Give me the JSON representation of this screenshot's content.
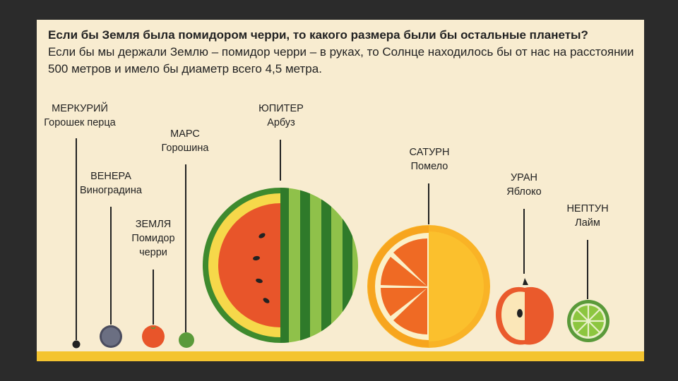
{
  "title": "Если бы Земля была помидором черри, то какого размера были бы остальные планеты?",
  "subtitle": "Если бы мы держали Землю – помидор черри – в руках, то Солнце находилось бы от нас на расстоянии 500 метров и имело бы диаметр всего 4,5 метра.",
  "planets": [
    {
      "name": "МЕРКУРИЙ",
      "fruit": "Горошек перца"
    },
    {
      "name": "ВЕНЕРА",
      "fruit": "Виноградина"
    },
    {
      "name": "ЗЕМЛЯ",
      "fruit": "Помидор черри"
    },
    {
      "name": "МАРС",
      "fruit": "Горошина"
    },
    {
      "name": "ЮПИТЕР",
      "fruit": "Арбуз"
    },
    {
      "name": "САТУРН",
      "fruit": "Помело"
    },
    {
      "name": "УРАН",
      "fruit": "Яблоко"
    },
    {
      "name": "НЕПТУН",
      "fruit": "Лайм"
    }
  ],
  "colors": {
    "background": "#f8ecd0",
    "ground": "#f4c430",
    "pepper": "#222222",
    "grape": "#6b6f82",
    "tomato": "#e8552a",
    "pea": "#5a9a3a",
    "watermelon_rind": "#3e8a2e",
    "watermelon_flesh": "#e8552a",
    "pomelo": "#fbb12a",
    "apple": "#ea5a2c",
    "lime": "#8cc63f"
  }
}
